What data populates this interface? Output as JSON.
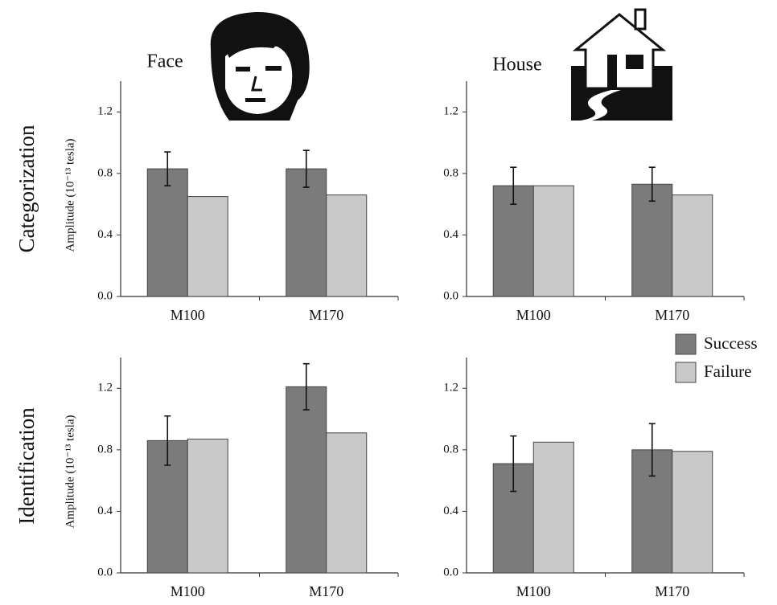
{
  "column_titles": [
    "Face",
    "House"
  ],
  "row_titles": [
    "Categorization",
    "Identification"
  ],
  "chart_data": [
    {
      "type": "bar",
      "ylabel": "Amplitude (10⁻¹³ tesla)",
      "categories": [
        "M100",
        "M170"
      ],
      "series": [
        {
          "name": "Success",
          "color": "#7b7b7b",
          "values": [
            0.83,
            0.83
          ],
          "errors": [
            0.11,
            0.12
          ]
        },
        {
          "name": "Failure",
          "color": "#c9c9c9",
          "values": [
            0.65,
            0.66
          ]
        }
      ],
      "ylim": [
        0,
        1.4
      ],
      "yticks": [
        {
          "value": 0,
          "label": "0.0"
        },
        0.4,
        0.8,
        1.2
      ]
    },
    {
      "type": "bar",
      "categories": [
        "M100",
        "M170"
      ],
      "series": [
        {
          "name": "Success",
          "color": "#7b7b7b",
          "values": [
            0.72,
            0.73
          ],
          "errors": [
            0.12,
            0.11
          ]
        },
        {
          "name": "Failure",
          "color": "#c9c9c9",
          "values": [
            0.72,
            0.66
          ]
        }
      ],
      "ylim": [
        0,
        1.4
      ],
      "yticks": [
        {
          "value": 0,
          "label": "0.0"
        },
        0.4,
        0.8,
        1.2
      ]
    },
    {
      "type": "bar",
      "ylabel": "Amplitude (10⁻¹³ tesla)",
      "categories": [
        "M100",
        "M170"
      ],
      "series": [
        {
          "name": "Success",
          "color": "#7b7b7b",
          "values": [
            0.86,
            1.21
          ],
          "errors": [
            0.16,
            0.15
          ]
        },
        {
          "name": "Failure",
          "color": "#c9c9c9",
          "values": [
            0.87,
            0.91
          ]
        }
      ],
      "ylim": [
        0,
        1.4
      ],
      "yticks": [
        {
          "value": 0,
          "label": "0.0"
        },
        0.4,
        0.8,
        1.2
      ]
    },
    {
      "type": "bar",
      "categories": [
        "M100",
        "M170"
      ],
      "series": [
        {
          "name": "Success",
          "color": "#7b7b7b",
          "values": [
            0.71,
            0.8
          ],
          "errors": [
            0.18,
            0.17
          ]
        },
        {
          "name": "Failure",
          "color": "#c9c9c9",
          "values": [
            0.85,
            0.79
          ]
        }
      ],
      "ylim": [
        0,
        1.4
      ],
      "yticks": [
        {
          "value": 0,
          "label": "0.0"
        },
        0.4,
        0.8,
        1.2
      ],
      "legend": "upper right"
    }
  ]
}
